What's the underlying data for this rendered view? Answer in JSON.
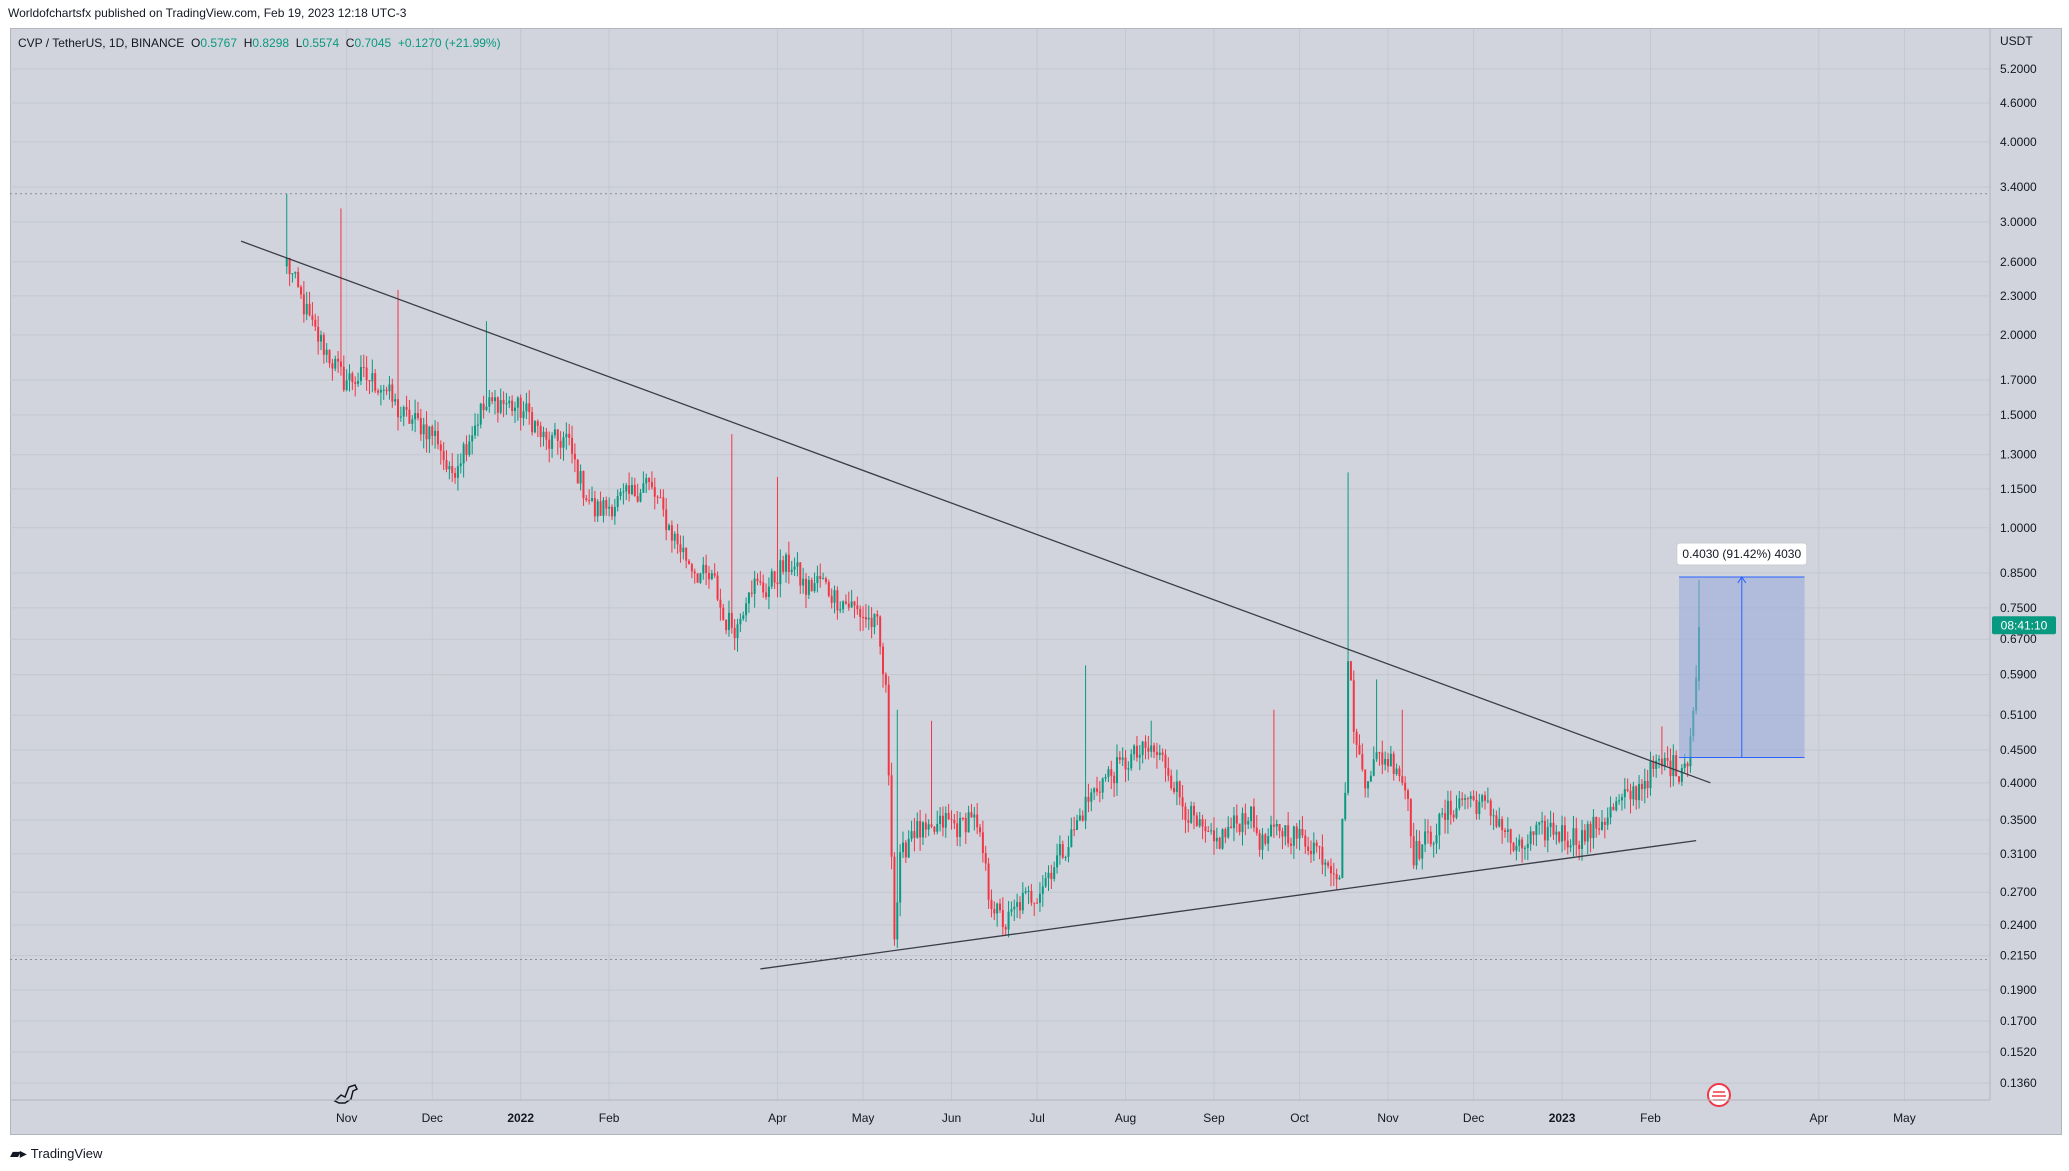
{
  "attribution": "Worldofchartsfx published on TradingView.com, Feb 19, 2023 12:18 UTC-3",
  "symbol_line": {
    "symbol": "CVP / TetherUS, 1D, BINANCE",
    "open_label": "O",
    "open": "0.5767",
    "high_label": "H",
    "high": "0.8298",
    "low_label": "L",
    "low": "0.5574",
    "close_label": "C",
    "close": "0.7045",
    "change": "+0.1270 (+21.99%)"
  },
  "footer_logo": "TradingView",
  "colors": {
    "up": "#089981",
    "down": "#f23645",
    "background": "#d1d4dc",
    "grid": "#c4c7cf",
    "trendline": "#3a3d48",
    "measure_fill": "#98a8df",
    "measure_line": "#2962ff",
    "price_tag": "#089981"
  },
  "chart_data": {
    "type": "candlestick",
    "scale": "log",
    "currency_label": "USDT",
    "y_ticks": [
      "5.2000",
      "4.6000",
      "4.0000",
      "3.4000",
      "3.0000",
      "2.6000",
      "2.3000",
      "2.0000",
      "1.7000",
      "1.5000",
      "1.3000",
      "1.1500",
      "1.0000",
      "0.8500",
      "0.7500",
      "0.6700",
      "0.5900",
      "0.5100",
      "0.4500",
      "0.4000",
      "0.3500",
      "0.3100",
      "0.2700",
      "0.2400",
      "0.2150",
      "0.1900",
      "0.1700",
      "0.1520",
      "0.1360"
    ],
    "ylim": [
      0.128,
      6.0
    ],
    "x_labels": [
      "Nov",
      "Dec",
      "2022",
      "Feb",
      "Apr",
      "May",
      "Jun",
      "Jul",
      "Aug",
      "Sep",
      "Oct",
      "Nov",
      "Dec",
      "2023",
      "Feb",
      "Apr",
      "May"
    ],
    "x_label_dates": [
      "2021-11-01",
      "2021-12-01",
      "2022-01-01",
      "2022-02-01",
      "2022-04-01",
      "2022-05-01",
      "2022-06-01",
      "2022-07-01",
      "2022-08-01",
      "2022-09-01",
      "2022-10-01",
      "2022-11-01",
      "2022-12-01",
      "2023-01-01",
      "2023-02-01",
      "2023-04-01",
      "2023-05-01"
    ],
    "x_range": [
      "2021-07-06",
      "2023-05-31"
    ],
    "price_tag": "08:41:10",
    "dotted_levels": [
      3.32,
      0.212
    ],
    "trendlines": [
      {
        "start": [
          "2021-09-25",
          2.8
        ],
        "end": [
          "2023-02-22",
          0.4
        ]
      },
      {
        "start": [
          "2022-03-26",
          0.205
        ],
        "end": [
          "2023-02-17",
          0.325
        ]
      }
    ],
    "measure": {
      "label": "0.4030 (91.42%) 4030",
      "start_date": "2023-02-11",
      "end_date": "2023-03-27",
      "low": 0.438,
      "high": 0.838
    },
    "anchors": [
      [
        "2021-10-11",
        2.6
      ],
      [
        "2021-10-14",
        2.4
      ],
      [
        "2021-10-20",
        2.05
      ],
      [
        "2021-10-26",
        1.85
      ],
      [
        "2021-10-31",
        1.7
      ],
      [
        "2021-11-07",
        1.72
      ],
      [
        "2021-11-14",
        1.66
      ],
      [
        "2021-11-20",
        1.5
      ],
      [
        "2021-11-27",
        1.45
      ],
      [
        "2021-12-03",
        1.38
      ],
      [
        "2021-12-07",
        1.2
      ],
      [
        "2021-12-12",
        1.33
      ],
      [
        "2021-12-18",
        1.52
      ],
      [
        "2021-12-24",
        1.58
      ],
      [
        "2021-12-29",
        1.55
      ],
      [
        "2022-01-04",
        1.5
      ],
      [
        "2022-01-10",
        1.35
      ],
      [
        "2022-01-17",
        1.38
      ],
      [
        "2022-01-22",
        1.18
      ],
      [
        "2022-01-27",
        1.06
      ],
      [
        "2022-02-02",
        1.09
      ],
      [
        "2022-02-08",
        1.12
      ],
      [
        "2022-02-14",
        1.18
      ],
      [
        "2022-02-18",
        1.1
      ],
      [
        "2022-02-23",
        0.98
      ],
      [
        "2022-02-28",
        0.9
      ],
      [
        "2022-03-04",
        0.85
      ],
      [
        "2022-03-10",
        0.82
      ],
      [
        "2022-03-13",
        0.72
      ],
      [
        "2022-03-18",
        0.7
      ],
      [
        "2022-03-22",
        0.82
      ],
      [
        "2022-03-28",
        0.8
      ],
      [
        "2022-04-02",
        0.86
      ],
      [
        "2022-04-06",
        0.88
      ],
      [
        "2022-04-11",
        0.8
      ],
      [
        "2022-04-16",
        0.83
      ],
      [
        "2022-04-21",
        0.78
      ],
      [
        "2022-04-26",
        0.76
      ],
      [
        "2022-05-01",
        0.73
      ],
      [
        "2022-05-06",
        0.7
      ],
      [
        "2022-05-09",
        0.55
      ],
      [
        "2022-05-11",
        0.32
      ],
      [
        "2022-05-12",
        0.23
      ],
      [
        "2022-05-14",
        0.3
      ],
      [
        "2022-05-18",
        0.34
      ],
      [
        "2022-05-24",
        0.33
      ],
      [
        "2022-05-30",
        0.35
      ],
      [
        "2022-06-04",
        0.34
      ],
      [
        "2022-06-08",
        0.36
      ],
      [
        "2022-06-12",
        0.31
      ],
      [
        "2022-06-14",
        0.27
      ],
      [
        "2022-06-17",
        0.25
      ],
      [
        "2022-06-20",
        0.24
      ],
      [
        "2022-06-25",
        0.26
      ],
      [
        "2022-07-01",
        0.27
      ],
      [
        "2022-07-07",
        0.3
      ],
      [
        "2022-07-13",
        0.33
      ],
      [
        "2022-07-18",
        0.37
      ],
      [
        "2022-07-23",
        0.4
      ],
      [
        "2022-07-29",
        0.42
      ],
      [
        "2022-08-04",
        0.44
      ],
      [
        "2022-08-10",
        0.45
      ],
      [
        "2022-08-15",
        0.43
      ],
      [
        "2022-08-20",
        0.38
      ],
      [
        "2022-08-26",
        0.34
      ],
      [
        "2022-09-01",
        0.32
      ],
      [
        "2022-09-07",
        0.34
      ],
      [
        "2022-09-13",
        0.36
      ],
      [
        "2022-09-18",
        0.32
      ],
      [
        "2022-09-24",
        0.34
      ],
      [
        "2022-09-30",
        0.33
      ],
      [
        "2022-10-06",
        0.32
      ],
      [
        "2022-10-12",
        0.3
      ],
      [
        "2022-10-15",
        0.29
      ],
      [
        "2022-10-17",
        0.4
      ],
      [
        "2022-10-18",
        0.62
      ],
      [
        "2022-10-21",
        0.45
      ],
      [
        "2022-10-24",
        0.41
      ],
      [
        "2022-10-29",
        0.44
      ],
      [
        "2022-11-04",
        0.43
      ],
      [
        "2022-11-08",
        0.38
      ],
      [
        "2022-11-10",
        0.31
      ],
      [
        "2022-11-16",
        0.33
      ],
      [
        "2022-11-22",
        0.36
      ],
      [
        "2022-11-28",
        0.38
      ],
      [
        "2022-12-04",
        0.37
      ],
      [
        "2022-12-10",
        0.35
      ],
      [
        "2022-12-16",
        0.31
      ],
      [
        "2022-12-22",
        0.33
      ],
      [
        "2022-12-28",
        0.34
      ],
      [
        "2023-01-03",
        0.33
      ],
      [
        "2023-01-09",
        0.33
      ],
      [
        "2023-01-15",
        0.35
      ],
      [
        "2023-01-21",
        0.37
      ],
      [
        "2023-01-27",
        0.39
      ],
      [
        "2023-02-02",
        0.42
      ],
      [
        "2023-02-07",
        0.43
      ],
      [
        "2023-02-11",
        0.42
      ],
      [
        "2023-02-14",
        0.44
      ],
      [
        "2023-02-16",
        0.52
      ],
      [
        "2023-02-17",
        0.58
      ],
      [
        "2023-02-18",
        0.7
      ]
    ],
    "wick_spikes": [
      [
        "2021-10-11",
        3.32
      ],
      [
        "2021-10-20",
        2.25
      ],
      [
        "2021-10-30",
        3.15
      ],
      [
        "2021-11-19",
        2.35
      ],
      [
        "2021-12-20",
        2.1
      ],
      [
        "2022-03-16",
        1.4
      ],
      [
        "2022-04-01",
        1.2
      ],
      [
        "2022-05-13",
        0.52
      ],
      [
        "2022-05-25",
        0.5
      ],
      [
        "2022-07-18",
        0.61
      ],
      [
        "2022-08-10",
        0.5
      ],
      [
        "2022-09-22",
        0.52
      ],
      [
        "2022-10-18",
        1.22
      ],
      [
        "2022-10-28",
        0.58
      ],
      [
        "2022-11-06",
        0.52
      ],
      [
        "2023-02-05",
        0.49
      ],
      [
        "2023-02-18",
        0.83
      ]
    ]
  }
}
